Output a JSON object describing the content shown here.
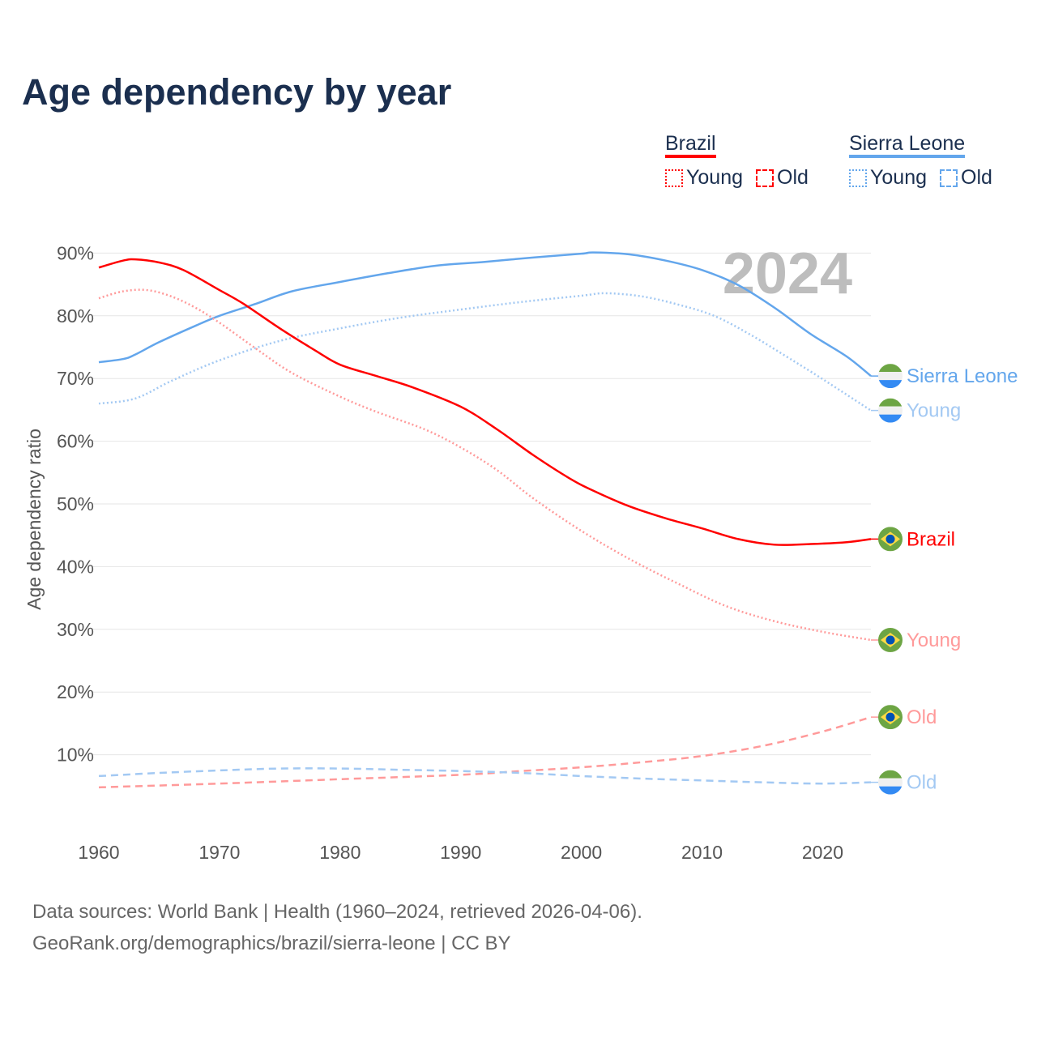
{
  "title": "Age dependency by year",
  "legend": {
    "groups": [
      {
        "name": "Brazil",
        "color": "#ff0000",
        "items": [
          "Young",
          "Old"
        ]
      },
      {
        "name": "Sierra Leone",
        "color": "#63a6ec",
        "items": [
          "Young",
          "Old"
        ]
      }
    ]
  },
  "footer": {
    "line1": "Data sources: World Bank | Health (1960–2024, retrieved 2026-04-06).",
    "line2": "GeoRank.org/demographics/brazil/sierra-leone | CC BY"
  },
  "chart_data": {
    "type": "line",
    "title": "Age dependency by year",
    "ylabel": "Age dependency ratio",
    "xlabel": "",
    "year_label": "2024",
    "xlim": [
      1960,
      2024
    ],
    "ylim": [
      0,
      90
    ],
    "x_ticks": [
      1960,
      1970,
      1980,
      1990,
      2000,
      2010,
      2020
    ],
    "y_ticks": [
      10,
      20,
      30,
      40,
      50,
      60,
      70,
      80,
      90
    ],
    "y_tick_suffix": "%",
    "grid": true,
    "series": [
      {
        "name": "Sierra Leone",
        "end_label": "Sierra Leone",
        "country": "Sierra Leone",
        "style": "solid",
        "color": "#63a6ec",
        "x": [
          1960,
          1962,
          1963,
          1965,
          1968,
          1970,
          1973,
          1976,
          1980,
          1984,
          1988,
          1992,
          1996,
          2000,
          2001,
          2004,
          2007,
          2010,
          2013,
          2016,
          2019,
          2022,
          2024
        ],
        "y": [
          72.6,
          73.1,
          73.8,
          75.8,
          78.4,
          80.0,
          81.9,
          83.9,
          85.4,
          86.8,
          88.0,
          88.6,
          89.3,
          89.9,
          90.1,
          89.8,
          88.8,
          87.3,
          84.9,
          81.3,
          77.1,
          73.5,
          70.4
        ]
      },
      {
        "name": "Sierra Leone Young",
        "end_label": "Young",
        "country": "Sierra Leone",
        "style": "dotted",
        "color": "#a3c9f3",
        "x": [
          1960,
          1963,
          1966,
          1970,
          1975,
          1980,
          1985,
          1990,
          1995,
          2000,
          2002,
          2005,
          2008,
          2011,
          2014,
          2017,
          2020,
          2024
        ],
        "y": [
          66.0,
          66.8,
          69.6,
          72.9,
          76.0,
          78.0,
          79.7,
          81.0,
          82.2,
          83.2,
          83.6,
          83.1,
          81.8,
          80.0,
          77.0,
          73.5,
          69.9,
          64.9
        ]
      },
      {
        "name": "Brazil",
        "end_label": "Brazil",
        "country": "Brazil",
        "style": "solid",
        "color": "#ff0000",
        "x": [
          1960,
          1962,
          1963,
          1965,
          1967,
          1970,
          1972,
          1975,
          1978,
          1980,
          1983,
          1986,
          1990,
          1993,
          1996,
          1999,
          2001,
          2004,
          2007,
          2010,
          2013,
          2016,
          2019,
          2022,
          2024
        ],
        "y": [
          87.7,
          88.8,
          89.0,
          88.5,
          87.3,
          84.1,
          81.9,
          78.0,
          74.4,
          72.2,
          70.4,
          68.6,
          65.5,
          61.9,
          57.8,
          54.1,
          52.1,
          49.6,
          47.7,
          46.1,
          44.4,
          43.5,
          43.6,
          43.9,
          44.4
        ]
      },
      {
        "name": "Brazil Young",
        "end_label": "Young",
        "country": "Brazil",
        "style": "dotted",
        "color": "#ff9a9a",
        "x": [
          1960,
          1962,
          1964,
          1966,
          1968,
          1970,
          1973,
          1976,
          1980,
          1983,
          1987,
          1990,
          1993,
          1996,
          2000,
          2004,
          2008,
          2012,
          2016,
          2020,
          2024
        ],
        "y": [
          82.8,
          83.9,
          84.1,
          83.1,
          81.3,
          78.9,
          74.8,
          70.9,
          67.1,
          64.7,
          61.9,
          59.0,
          55.4,
          50.9,
          45.7,
          41.2,
          37.3,
          33.7,
          31.3,
          29.6,
          28.3
        ]
      },
      {
        "name": "Brazil Old",
        "end_label": "Old",
        "country": "Brazil",
        "style": "dashed",
        "color": "#ff9a9a",
        "x": [
          1960,
          1970,
          1980,
          1990,
          1995,
          2000,
          2005,
          2010,
          2015,
          2020,
          2024
        ],
        "y": [
          4.8,
          5.4,
          6.1,
          6.8,
          7.4,
          8.0,
          8.8,
          9.8,
          11.4,
          13.7,
          16.0
        ]
      },
      {
        "name": "Sierra Leone Old",
        "end_label": "Old",
        "country": "Sierra Leone",
        "style": "dashed",
        "color": "#a3c9f3",
        "x": [
          1960,
          1965,
          1970,
          1975,
          1980,
          1985,
          1990,
          1995,
          2000,
          2005,
          2010,
          2015,
          2020,
          2024
        ],
        "y": [
          6.6,
          7.1,
          7.5,
          7.8,
          7.8,
          7.6,
          7.4,
          7.1,
          6.6,
          6.2,
          5.9,
          5.6,
          5.4,
          5.6
        ]
      }
    ]
  }
}
